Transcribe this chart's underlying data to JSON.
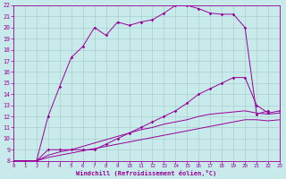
{
  "background_color": "#c8eaea",
  "grid_color": "#a0c8c8",
  "line_color": "#990099",
  "xlim": [
    0,
    23
  ],
  "ylim": [
    8,
    22
  ],
  "xticks": [
    0,
    1,
    2,
    3,
    4,
    5,
    6,
    7,
    8,
    9,
    10,
    11,
    12,
    13,
    14,
    15,
    16,
    17,
    18,
    19,
    20,
    21,
    22,
    23
  ],
  "yticks": [
    8,
    9,
    10,
    11,
    12,
    13,
    14,
    15,
    16,
    17,
    18,
    19,
    20,
    21,
    22
  ],
  "xlabel": "Windchill (Refroidissement éolien,°C)",
  "c1x": [
    0,
    1,
    2,
    3,
    4,
    5,
    6,
    7,
    8,
    9,
    10,
    11,
    12,
    13,
    14,
    15,
    16,
    17,
    18,
    19,
    20,
    21,
    22
  ],
  "c1y": [
    8,
    8,
    8,
    12,
    14.7,
    17.3,
    18.3,
    20,
    19.3,
    20.5,
    20.2,
    20.5,
    20.7,
    21.3,
    22,
    22,
    21.7,
    21.3,
    21.2,
    21.2,
    20,
    12.2,
    12.5
  ],
  "c2x": [
    0,
    1,
    2,
    3,
    4,
    5,
    6,
    7,
    8,
    9,
    10,
    11,
    12,
    13,
    14,
    15,
    16,
    17,
    18,
    19,
    20,
    21,
    22,
    23
  ],
  "c2y": [
    8,
    8,
    8,
    9,
    9,
    9,
    9,
    9,
    9.5,
    10,
    10.5,
    11,
    11.5,
    12,
    12.5,
    13.2,
    14,
    14.5,
    15,
    15.5,
    15.5,
    13,
    12.3,
    12.5
  ],
  "c3x": [
    0,
    1,
    2,
    3,
    4,
    5,
    6,
    7,
    8,
    9,
    10,
    11,
    12,
    13,
    14,
    15,
    16,
    17,
    18,
    19,
    20,
    21,
    22,
    23
  ],
  "c3y": [
    8,
    8,
    8,
    8.5,
    8.8,
    9,
    9.3,
    9.6,
    9.9,
    10.2,
    10.5,
    10.8,
    11,
    11.3,
    11.5,
    11.7,
    12,
    12.2,
    12.3,
    12.4,
    12.5,
    12.3,
    12.2,
    12.3
  ],
  "c4x": [
    0,
    1,
    2,
    3,
    4,
    5,
    6,
    7,
    8,
    9,
    10,
    11,
    12,
    13,
    14,
    15,
    16,
    17,
    18,
    19,
    20,
    21,
    22,
    23
  ],
  "c4y": [
    8,
    8,
    8,
    8.3,
    8.5,
    8.7,
    8.9,
    9.1,
    9.3,
    9.5,
    9.7,
    9.9,
    10.1,
    10.3,
    10.5,
    10.7,
    10.9,
    11.1,
    11.3,
    11.5,
    11.7,
    11.7,
    11.6,
    11.7
  ]
}
